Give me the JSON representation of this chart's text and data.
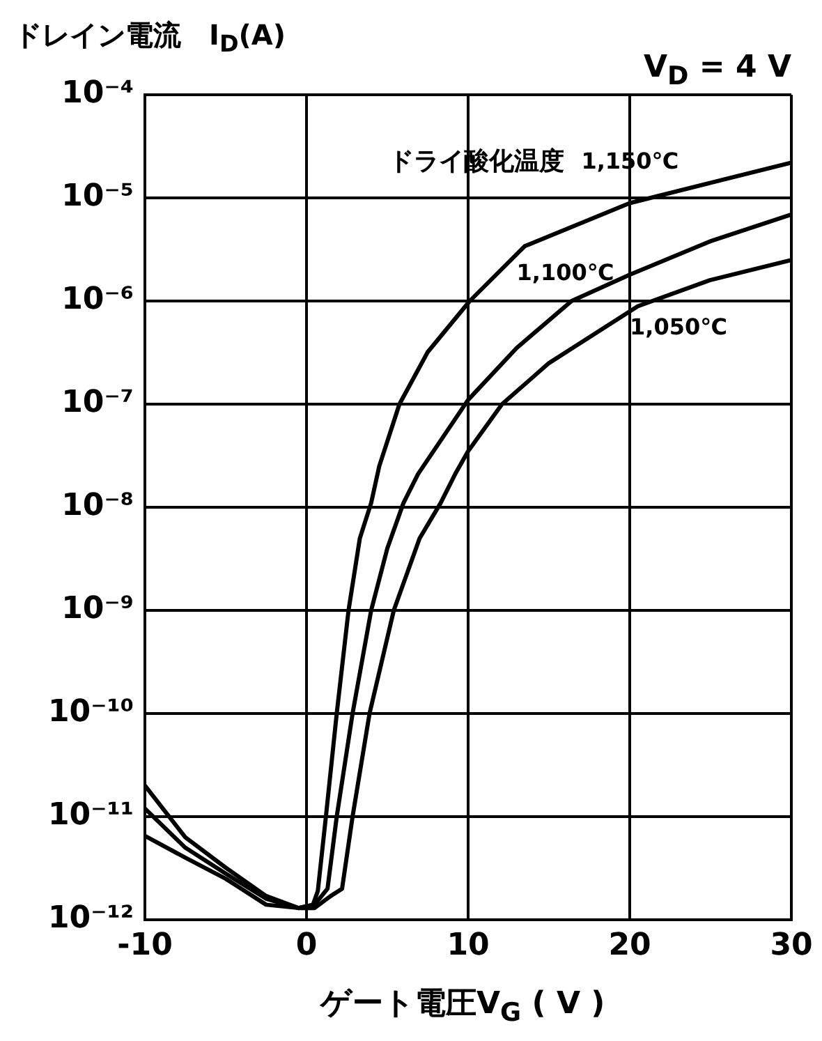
{
  "chart_data": {
    "type": "line",
    "xlabel": "ゲート電圧V$_{G}$ ( V )",
    "ylabel": "ドレイン電流　I$_{D}$(A)",
    "annotations": [
      "V$_{D}$ = 4 V",
      "ドライ酸化温度"
    ],
    "log": "y",
    "grid": true,
    "legend": false,
    "marker": "none",
    "line_style": "solid",
    "xlim": [
      -10,
      30
    ],
    "xticks": [
      -10,
      0,
      10,
      20,
      30
    ],
    "ylim": [
      1e-12,
      0.0001
    ],
    "yticks": [
      {
        "value": 1e-12,
        "label": "10⁻¹²"
      },
      {
        "value": 1e-11,
        "label": "10⁻¹¹"
      },
      {
        "value": 1e-10,
        "label": "10⁻¹⁰"
      },
      {
        "value": 1e-09,
        "label": "10⁻⁹"
      },
      {
        "value": 1e-08,
        "label": "10⁻⁸"
      },
      {
        "value": 1e-07,
        "label": "10⁻⁷"
      },
      {
        "value": 1e-06,
        "label": "10⁻⁶"
      },
      {
        "value": 1e-05,
        "label": "10⁻⁵"
      },
      {
        "value": 0.0001,
        "label": "10⁻⁴"
      }
    ],
    "series": [
      {
        "name": "1,150℃",
        "color": "#000000",
        "x": [
          -10,
          -7.5,
          -5,
          -2.5,
          -0.5,
          0.4,
          0.7,
          1.2,
          1.87,
          2.6,
          3.3,
          4.0,
          4.5,
          5.75,
          7.5,
          10.1,
          13.5,
          20,
          25,
          30
        ],
        "values": [
          2e-11,
          6.3e-12,
          3.2e-12,
          1.7e-12,
          1.3e-12,
          1.4e-12,
          1.9e-12,
          1e-11,
          1e-10,
          1e-09,
          5e-09,
          1.1e-08,
          2.5e-08,
          1e-07,
          3.2e-07,
          1e-06,
          3.4e-06,
          8.9e-06,
          1.4e-05,
          2.2e-05
        ]
      },
      {
        "name": "1,100℃",
        "color": "#000000",
        "x": [
          -10,
          -7.5,
          -5,
          -2.5,
          -0.5,
          0.5,
          1.3,
          1.87,
          2.85,
          4.0,
          5.0,
          6.0,
          6.9,
          10,
          13,
          16.4,
          20,
          25,
          30
        ],
        "values": [
          1.2e-11,
          5e-12,
          2.8e-12,
          1.6e-12,
          1.3e-12,
          1.4e-12,
          2e-12,
          1e-11,
          1e-10,
          1e-09,
          4e-09,
          1.1e-08,
          2.1e-08,
          1.1e-07,
          3.5e-07,
          1e-06,
          1.8e-06,
          3.8e-06,
          6.9e-06
        ]
      },
      {
        "name": "1,050℃",
        "color": "#000000",
        "x": [
          -10,
          -7.5,
          -5,
          -2.5,
          -0.5,
          0.5,
          1.5,
          2.2,
          2.85,
          3.9,
          5.4,
          7,
          8.3,
          9.2,
          10,
          12.1,
          15,
          20.5,
          25,
          30
        ],
        "values": [
          6.5e-12,
          4e-12,
          2.5e-12,
          1.4e-12,
          1.3e-12,
          1.3e-12,
          1.7e-12,
          2e-12,
          1e-11,
          1e-10,
          1e-09,
          5e-09,
          1.1e-08,
          2.1e-08,
          3.5e-08,
          1e-07,
          2.5e-07,
          8.9e-07,
          1.6e-06,
          2.5e-06
        ]
      }
    ]
  }
}
